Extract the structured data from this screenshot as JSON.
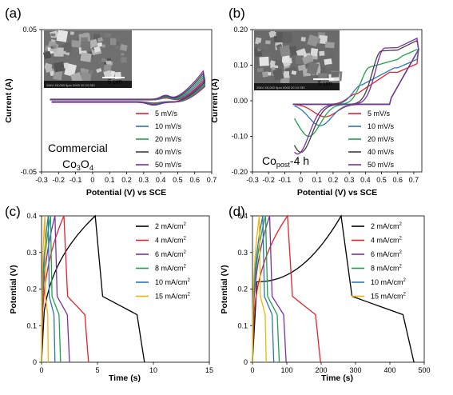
{
  "chart_data": [
    {
      "panel_label": "(a)",
      "type": "line",
      "xlabel": "Potential (V) vs SCE",
      "ylabel": "Current (A)",
      "xlim": [
        -0.3,
        0.7
      ],
      "ylim": [
        -0.05,
        0.05
      ],
      "x_ticks": [
        "-0.3",
        "-0.2",
        "-0.1",
        "0",
        "0.1",
        "0.2",
        "0.3",
        "0.4",
        "0.5",
        "0.6",
        "0.7"
      ],
      "y_ticks": [
        "0.05",
        "-0.05"
      ],
      "annotation": {
        "line1": "Commercial",
        "line2_main": "Co",
        "line2_sub1": "3",
        "line2_mid": "O",
        "line2_sub2": "4"
      },
      "inset": {
        "scale_label": "5 μm",
        "caption": "20kV  X5,000  5μm  0000 20 24 SEI"
      },
      "legend_position": "bottom-right",
      "series": [
        {
          "name": "5 mV/s",
          "color": "#e8212a",
          "scale": 0.55,
          "onset": 0.49
        },
        {
          "name": "10 mV/s",
          "color": "#2e75b6",
          "scale": 0.7,
          "onset": 0.48
        },
        {
          "name": "20 mV/s",
          "color": "#21a24a",
          "scale": 0.85,
          "onset": 0.47
        },
        {
          "name": "40 mV/s",
          "color": "#404040",
          "scale": 1.0,
          "onset": 0.46
        },
        {
          "name": "50 mV/s",
          "color": "#7a2fa8",
          "scale": 1.1,
          "onset": 0.45
        }
      ]
    },
    {
      "panel_label": "(b)",
      "type": "line",
      "xlabel": "Potential (V) vs SCE",
      "ylabel": "Current (A)",
      "xlim": [
        -0.3,
        0.75
      ],
      "ylim": [
        -0.2,
        0.2
      ],
      "x_ticks": [
        "-0.3",
        "-0.2",
        "-0.1",
        "0",
        "0.1",
        "0.2",
        "0.3",
        "0.4",
        "0.5",
        "0.6",
        "0.7"
      ],
      "y_ticks": [
        "0.20",
        "0.10",
        "0.00",
        "-0.10",
        "-0.20"
      ],
      "annotation": {
        "main": "Co",
        "sub": "post",
        "tail": "-4 h"
      },
      "inset": {
        "scale_label": "5 μm",
        "caption": "20kV  X5,000  5μm  0000 20 24 SEI"
      },
      "legend_position": "bottom-right",
      "series": [
        {
          "name": "5 mV/s",
          "color": "#e8212a",
          "anodic_peak": [
            0.35,
            0.02
          ],
          "cathodic_peak": [
            0.15,
            -0.035
          ],
          "end": 0.14
        },
        {
          "name": "10 mV/s",
          "color": "#2e75b6",
          "anodic_peak": [
            0.38,
            0.045
          ],
          "cathodic_peak": [
            0.12,
            -0.06
          ],
          "end": 0.14
        },
        {
          "name": "20 mV/s",
          "color": "#21a24a",
          "anodic_peak": [
            0.43,
            0.095
          ],
          "cathodic_peak": [
            0.05,
            -0.09
          ],
          "end": 0.145
        },
        {
          "name": "40 mV/s",
          "color": "#404040",
          "anodic_peak": [
            0.5,
            0.14
          ],
          "cathodic_peak": [
            0.0,
            -0.135
          ],
          "end": 0.15
        },
        {
          "name": "50 mV/s",
          "color": "#7a2fa8",
          "anodic_peak": [
            0.52,
            0.148
          ],
          "cathodic_peak": [
            -0.02,
            -0.14
          ],
          "end": 0.155
        }
      ]
    },
    {
      "panel_label": "(c)",
      "type": "line",
      "xlabel": "Time (s)",
      "ylabel": "Potential (V)",
      "xlim": [
        0,
        15
      ],
      "ylim": [
        0,
        0.4
      ],
      "x_ticks": [
        "0",
        "5",
        "10",
        "15"
      ],
      "y_ticks": [
        "0.4",
        "0.3",
        "0.2",
        "0.1",
        "0"
      ],
      "legend_position": "top-right",
      "series": [
        {
          "name_main": "2 mA/cm",
          "name_sup": "2",
          "color": "#000000",
          "t_peak": 4.8,
          "t_end": 9.2
        },
        {
          "name_main": "4 mA/cm",
          "name_sup": "2",
          "color": "#e8212a",
          "t_peak": 2.0,
          "t_end": 4.2
        },
        {
          "name_main": "6 mA/cm",
          "name_sup": "2",
          "color": "#7a2fa8",
          "t_peak": 1.2,
          "t_end": 2.5
        },
        {
          "name_main": "8 mA/cm",
          "name_sup": "2",
          "color": "#21a24a",
          "t_peak": 0.8,
          "t_end": 1.7
        },
        {
          "name_main": "10 mA/cm",
          "name_sup": "2",
          "color": "#2e75b6",
          "t_peak": 0.6,
          "t_end": 1.2
        },
        {
          "name_main": "15 mA/cm",
          "name_sup": "2",
          "color": "#f5b400",
          "t_peak": 0.3,
          "t_end": 0.6
        }
      ]
    },
    {
      "panel_label": "(d)",
      "type": "line",
      "xlabel": "Time (s)",
      "ylabel": "Potential (V)",
      "xlim": [
        0,
        500
      ],
      "ylim": [
        0,
        0.4
      ],
      "x_ticks": [
        "0",
        "100",
        "200",
        "300",
        "400",
        "500"
      ],
      "y_ticks": [
        "0.4",
        "0.3",
        "0.2",
        "0.1",
        "0"
      ],
      "legend_position": "top-right",
      "series": [
        {
          "name_main": "2 mA/cm",
          "name_sup": "2",
          "color": "#000000",
          "t_peak": 258,
          "t_end": 470
        },
        {
          "name_main": "4 mA/cm",
          "name_sup": "2",
          "color": "#e8212a",
          "t_peak": 102,
          "t_end": 198
        },
        {
          "name_main": "6 mA/cm",
          "name_sup": "2",
          "color": "#7a2fa8",
          "t_peak": 50,
          "t_end": 98
        },
        {
          "name_main": "8 mA/cm",
          "name_sup": "2",
          "color": "#21a24a",
          "t_peak": 38,
          "t_end": 78
        },
        {
          "name_main": "10 mA/cm",
          "name_sup": "2",
          "color": "#2e75b6",
          "t_peak": 30,
          "t_end": 62
        },
        {
          "name_main": "15 mA/cm",
          "name_sup": "2",
          "color": "#f5b400",
          "t_peak": 20,
          "t_end": 40
        }
      ]
    }
  ]
}
